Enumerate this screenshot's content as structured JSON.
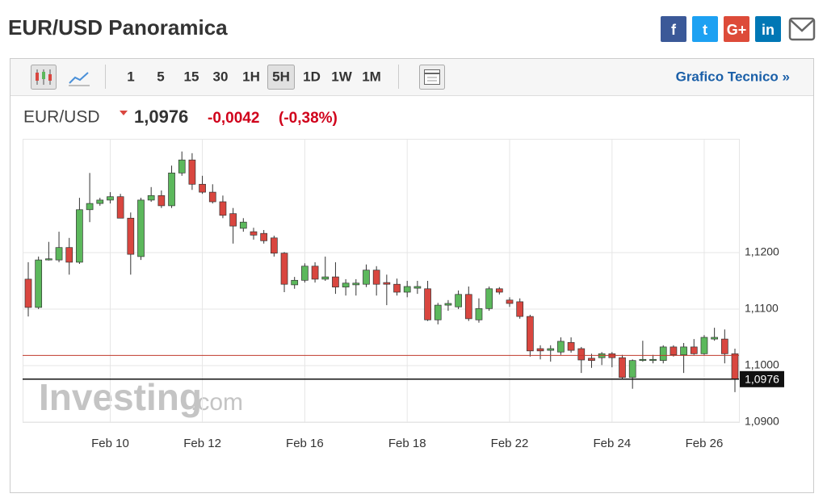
{
  "header": {
    "title": "EUR/USD Panoramica"
  },
  "share_buttons": [
    "f",
    "t",
    "G+",
    "in"
  ],
  "toolbar": {
    "intervals": [
      "1",
      "5",
      "15",
      "30",
      "1H",
      "5H",
      "1D",
      "1W",
      "1M"
    ],
    "active": "5H",
    "link": "Grafico Tecnico »"
  },
  "quote": {
    "symbol": "EUR/USD",
    "price": "1,0976",
    "change": "-0,0042",
    "change_pct": "(-0,38%)"
  },
  "watermark": {
    "brand": "Investing",
    "suffix": ".com"
  },
  "chart_data": {
    "type": "candlestick",
    "categories": [
      null,
      null,
      null,
      null,
      null,
      null,
      null,
      null,
      "Feb 10",
      null,
      null,
      null,
      null,
      null,
      null,
      null,
      null,
      "Feb 12",
      null,
      null,
      null,
      null,
      null,
      null,
      null,
      null,
      null,
      "Feb 16",
      null,
      null,
      null,
      null,
      null,
      null,
      null,
      null,
      null,
      "Feb 18",
      null,
      null,
      null,
      null,
      null,
      null,
      null,
      null,
      null,
      "Feb 22",
      null,
      null,
      null,
      null,
      null,
      null,
      null,
      null,
      null,
      "Feb 24",
      null,
      null,
      null,
      null,
      null,
      null,
      null,
      null,
      "Feb 26",
      null,
      null,
      null
    ],
    "open": [
      1.1153,
      1.1103,
      1.1187,
      1.1187,
      1.1209,
      1.1183,
      1.1276,
      1.1287,
      1.1293,
      1.1299,
      1.1261,
      1.1193,
      1.1293,
      1.1301,
      1.1283,
      1.1341,
      1.1364,
      1.1321,
      1.1307,
      1.129,
      1.1269,
      1.1243,
      1.1237,
      1.1234,
      1.1226,
      1.1199,
      1.1143,
      1.1151,
      1.1176,
      1.1153,
      1.1157,
      1.1139,
      1.1143,
      1.1144,
      1.1169,
      1.1147,
      1.1144,
      1.113,
      1.1137,
      1.1136,
      1.1081,
      1.1107,
      1.1104,
      1.1126,
      1.1081,
      1.1101,
      1.1136,
      1.1116,
      1.1113,
      1.1087,
      1.103,
      1.1027,
      1.1024,
      1.1041,
      1.103,
      1.1013,
      1.1014,
      1.1021,
      1.1014,
      1.0979,
      1.1009,
      1.1009,
      1.1009,
      1.1033,
      1.1019,
      1.1033,
      1.1021,
      1.1047,
      1.1047,
      1.1021
    ],
    "high": [
      1.1183,
      1.1193,
      1.1219,
      1.1237,
      1.1226,
      1.1297,
      1.1341,
      1.1297,
      1.1307,
      1.1304,
      1.1271,
      1.1297,
      1.1316,
      1.131,
      1.1354,
      1.1379,
      1.1376,
      1.1336,
      1.1321,
      1.1301,
      1.1279,
      1.1261,
      1.1244,
      1.124,
      1.123,
      1.1201,
      1.1157,
      1.1181,
      1.1183,
      1.1193,
      1.1183,
      1.1153,
      1.1153,
      1.1179,
      1.1176,
      1.1161,
      1.1154,
      1.115,
      1.115,
      1.115,
      1.1111,
      1.1116,
      1.1133,
      1.114,
      1.1119,
      1.114,
      1.1139,
      1.1121,
      1.1119,
      1.109,
      1.1036,
      1.1036,
      1.105,
      1.105,
      1.1033,
      1.1021,
      1.1024,
      1.1024,
      1.1019,
      1.1011,
      1.1044,
      1.1019,
      1.1036,
      1.1036,
      1.104,
      1.1047,
      1.1054,
      1.1067,
      1.1064,
      1.103
    ],
    "low": [
      1.1087,
      1.11,
      1.1186,
      1.1183,
      1.1161,
      1.118,
      1.1254,
      1.1283,
      1.1287,
      1.1261,
      1.1161,
      1.1187,
      1.129,
      1.1279,
      1.1279,
      1.1336,
      1.1311,
      1.1304,
      1.1287,
      1.1261,
      1.1216,
      1.1237,
      1.1223,
      1.1216,
      1.1193,
      1.113,
      1.1136,
      1.1147,
      1.1147,
      1.115,
      1.1127,
      1.1124,
      1.1124,
      1.1139,
      1.1124,
      1.1107,
      1.1124,
      1.1121,
      1.1127,
      1.1079,
      1.1073,
      1.1097,
      1.11,
      1.1079,
      1.1076,
      1.1097,
      1.1126,
      1.1104,
      1.1083,
      1.1016,
      1.1011,
      1.1007,
      1.1019,
      1.1023,
      1.0987,
      1.0996,
      1.1001,
      1.0997,
      1.0976,
      1.0959,
      1.1007,
      1.1004,
      1.1004,
      1.1016,
      1.0987,
      1.1019,
      1.1019,
      1.1044,
      1.1004,
      1.0953
    ],
    "close": [
      1.1103,
      1.1187,
      1.1189,
      1.1209,
      1.1183,
      1.1276,
      1.1287,
      1.1293,
      1.1299,
      1.1261,
      1.1197,
      1.1293,
      1.1301,
      1.1283,
      1.1341,
      1.1364,
      1.1321,
      1.1307,
      1.129,
      1.1266,
      1.1247,
      1.1254,
      1.1231,
      1.1221,
      1.1199,
      1.1144,
      1.1151,
      1.1176,
      1.1153,
      1.1157,
      1.1139,
      1.1146,
      1.1146,
      1.1169,
      1.1144,
      1.1144,
      1.113,
      1.114,
      1.114,
      1.1081,
      1.1107,
      1.111,
      1.1126,
      1.1083,
      1.1101,
      1.1136,
      1.113,
      1.111,
      1.1087,
      1.1026,
      1.1026,
      1.103,
      1.1043,
      1.1027,
      1.101,
      1.1009,
      1.1021,
      1.1014,
      1.0979,
      1.1009,
      1.1011,
      1.1011,
      1.1033,
      1.1019,
      1.1033,
      1.1021,
      1.105,
      1.105,
      1.1021,
      1.0976
    ],
    "up_color": "#5cb85c",
    "down_color": "#d9463f",
    "ylim": [
      1.09,
      1.14
    ],
    "yticks": [
      {
        "value": 1.09,
        "label": "1,0900"
      },
      {
        "value": 1.1,
        "label": "1,1000"
      },
      {
        "value": 1.11,
        "label": "1,1100"
      },
      {
        "value": 1.12,
        "label": "1,1200"
      }
    ],
    "grid": true,
    "reference_line": {
      "value": 1.1018,
      "color": "#c0392b"
    },
    "last_price": {
      "value": 1.0976,
      "label": "1,0976"
    }
  }
}
